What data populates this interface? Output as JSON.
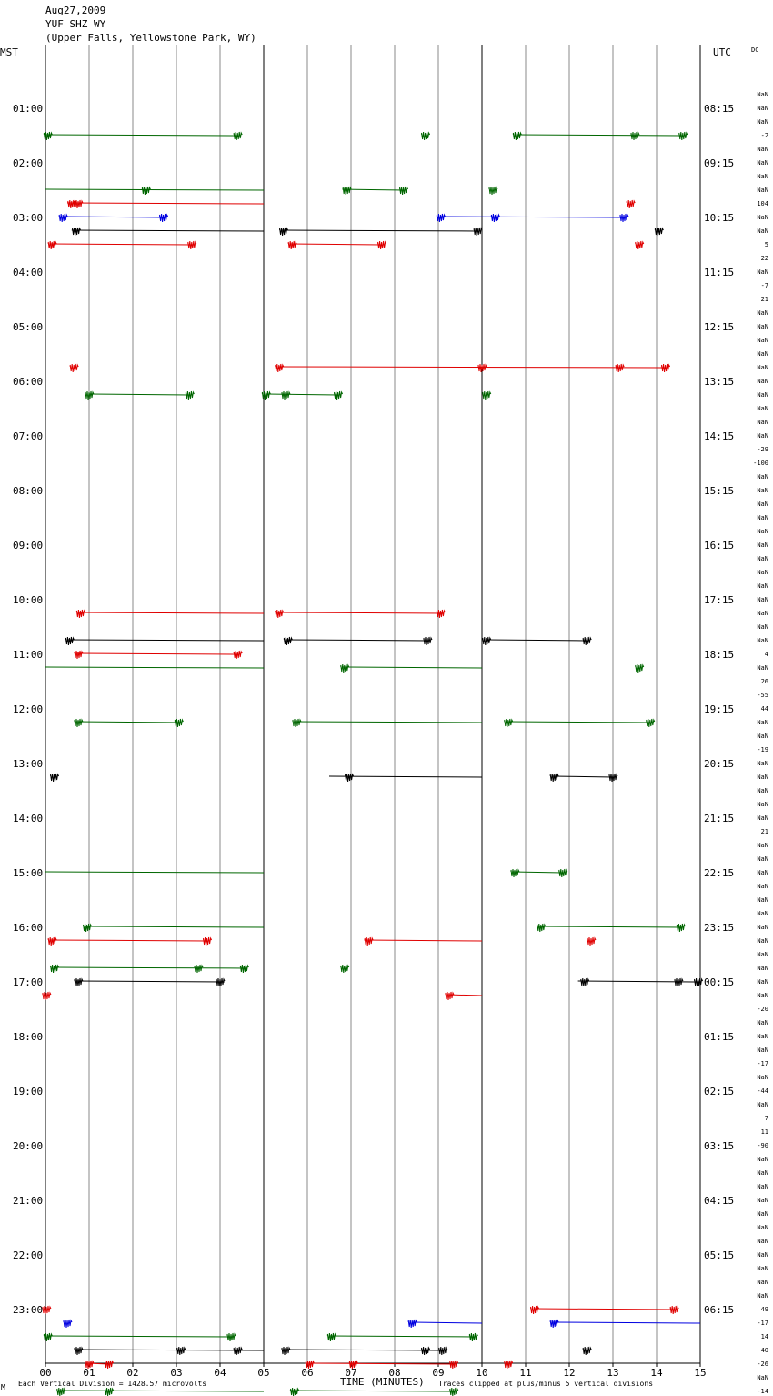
{
  "header": {
    "date": "Aug27,2009",
    "station": "YUF SHZ WY",
    "location": "(Upper Falls, Yellowstone Park, WY)"
  },
  "chart_data": {
    "type": "line",
    "title": "YUF SHZ WY",
    "left_axis_label": "MST",
    "right_axis_label": "UTC",
    "dc_label": "DC",
    "xlabel": "TIME (MINUTES)",
    "xlim": [
      0,
      15
    ],
    "x_ticks": [
      "00",
      "01",
      "02",
      "03",
      "04",
      "05",
      "06",
      "07",
      "08",
      "09",
      "10",
      "11",
      "12",
      "13",
      "14",
      "15"
    ],
    "row_count": 96,
    "left_hour_labels": [
      "01:00",
      "02:00",
      "03:00",
      "04:00",
      "05:00",
      "06:00",
      "07:00",
      "08:00",
      "09:00",
      "10:00",
      "11:00",
      "12:00",
      "13:00",
      "14:00",
      "15:00",
      "16:00",
      "17:00",
      "18:00",
      "19:00",
      "20:00",
      "21:00",
      "22:00",
      "23:00"
    ],
    "right_hour_labels": [
      "08:15",
      "09:15",
      "10:15",
      "11:15",
      "12:15",
      "13:15",
      "14:15",
      "15:15",
      "16:15",
      "17:15",
      "18:15",
      "19:15",
      "20:15",
      "21:15",
      "22:15",
      "23:15",
      "00:15",
      "01:15",
      "02:15",
      "03:15",
      "04:15",
      "05:15",
      "06:15"
    ],
    "dc_offsets": [
      "NaN",
      "NaN",
      "NaN",
      "-2",
      "NaN",
      "NaN",
      "NaN",
      "NaN",
      "104",
      "NaN",
      "NaN",
      "5",
      "22",
      "NaN",
      "-7",
      "21",
      "NaN",
      "NaN",
      "NaN",
      "NaN",
      "NaN",
      "NaN",
      "NaN",
      "NaN",
      "NaN",
      "NaN",
      "-29",
      "-100",
      "NaN",
      "NaN",
      "NaN",
      "NaN",
      "NaN",
      "NaN",
      "NaN",
      "NaN",
      "NaN",
      "NaN",
      "NaN",
      "NaN",
      "NaN",
      "4",
      "NaN",
      "26",
      "-55",
      "44",
      "NaN",
      "NaN",
      "-19",
      "NaN",
      "NaN",
      "NaN",
      "NaN",
      "NaN",
      "21",
      "NaN",
      "NaN",
      "NaN",
      "NaN",
      "NaN",
      "NaN",
      "NaN",
      "NaN",
      "NaN",
      "NaN",
      "NaN",
      "NaN",
      "-20",
      "NaN",
      "NaN",
      "NaN",
      "-17",
      "NaN",
      "-44",
      "NaN",
      "7",
      "11",
      "-90",
      "NaN",
      "NaN",
      "NaN",
      "NaN",
      "NaN",
      "NaN",
      "NaN",
      "NaN",
      "NaN",
      "NaN",
      "NaN",
      "49",
      "-17",
      "14",
      "40",
      "-26",
      "NaN",
      "-14"
    ],
    "colors": {
      "black": "#000000",
      "red": "#e00000",
      "blue": "#0000e0",
      "green": "#006600",
      "grid": "#888888"
    },
    "segments": [
      {
        "row": 3,
        "color": "green",
        "x": [
          0,
          4.4
        ],
        "bursts": [
          0.05,
          4.4
        ]
      },
      {
        "row": 3,
        "color": "green",
        "x": [
          8.7,
          8.7
        ],
        "bursts": [
          8.7
        ]
      },
      {
        "row": 3,
        "color": "green",
        "x": [
          10.8,
          14.6
        ],
        "bursts": [
          10.8,
          13.5,
          14.6
        ]
      },
      {
        "row": 7,
        "color": "green",
        "x": [
          0,
          5
        ],
        "bursts": [
          2.3
        ]
      },
      {
        "row": 7,
        "color": "green",
        "x": [
          6.8,
          8.2
        ],
        "bursts": [
          6.9,
          8.2
        ]
      },
      {
        "row": 7,
        "color": "green",
        "x": [
          10.25,
          10.25
        ],
        "bursts": [
          10.25
        ]
      },
      {
        "row": 8,
        "color": "red",
        "x": [
          0.5,
          5
        ],
        "bursts": [
          0.6,
          0.75
        ]
      },
      {
        "row": 8,
        "color": "red",
        "x": [
          13.4,
          13.4
        ],
        "bursts": [
          13.4
        ]
      },
      {
        "row": 9,
        "color": "blue",
        "x": [
          0.4,
          2.75
        ],
        "bursts": [
          0.4,
          2.7
        ]
      },
      {
        "row": 9,
        "color": "blue",
        "x": [
          9.05,
          13.25
        ],
        "bursts": [
          9.05,
          10.3,
          13.25
        ]
      },
      {
        "row": 10,
        "color": "black",
        "x": [
          0.6,
          5
        ],
        "bursts": [
          0.7
        ]
      },
      {
        "row": 10,
        "color": "black",
        "x": [
          5.4,
          9.9
        ],
        "bursts": [
          5.45,
          9.9
        ]
      },
      {
        "row": 10,
        "color": "black",
        "x": [
          14.05,
          14.05
        ],
        "bursts": [
          14.05
        ]
      },
      {
        "row": 11,
        "color": "red",
        "x": [
          0.1,
          3.4
        ],
        "bursts": [
          0.15,
          3.35
        ]
      },
      {
        "row": 11,
        "color": "red",
        "x": [
          5.6,
          7.7
        ],
        "bursts": [
          5.65,
          7.7
        ]
      },
      {
        "row": 11,
        "color": "red",
        "x": [
          13.6,
          13.6
        ],
        "bursts": [
          13.6
        ]
      },
      {
        "row": 20,
        "color": "red",
        "x": [
          0.6,
          0.6
        ],
        "bursts": [
          0.65
        ]
      },
      {
        "row": 20,
        "color": "red",
        "x": [
          5.35,
          14.2
        ],
        "bursts": [
          5.35,
          10.0,
          13.15,
          14.2
        ]
      },
      {
        "row": 22,
        "color": "green",
        "x": [
          1.0,
          3.3
        ],
        "bursts": [
          1.0,
          3.3
        ]
      },
      {
        "row": 22,
        "color": "green",
        "x": [
          5.05,
          6.7
        ],
        "bursts": [
          5.05,
          5.5,
          6.7
        ]
      },
      {
        "row": 22,
        "color": "green",
        "x": [
          10.1,
          10.1
        ],
        "bursts": [
          10.1
        ]
      },
      {
        "row": 38,
        "color": "red",
        "x": [
          0.75,
          5
        ],
        "bursts": [
          0.8
        ]
      },
      {
        "row": 38,
        "color": "red",
        "x": [
          5.3,
          9.1
        ],
        "bursts": [
          5.35,
          9.05
        ]
      },
      {
        "row": 40,
        "color": "black",
        "x": [
          0.5,
          5
        ],
        "bursts": [
          0.55
        ]
      },
      {
        "row": 40,
        "color": "black",
        "x": [
          5.5,
          8.8
        ],
        "bursts": [
          5.55,
          8.75
        ]
      },
      {
        "row": 40,
        "color": "black",
        "x": [
          10.1,
          12.4
        ],
        "bursts": [
          10.1,
          12.4
        ]
      },
      {
        "row": 41,
        "color": "red",
        "x": [
          0.7,
          4.4
        ],
        "bursts": [
          0.75,
          4.4
        ]
      },
      {
        "row": 42,
        "color": "green",
        "x": [
          0,
          5
        ],
        "bursts": []
      },
      {
        "row": 42,
        "color": "green",
        "x": [
          6.8,
          10
        ],
        "bursts": [
          6.85
        ]
      },
      {
        "row": 42,
        "color": "green",
        "x": [
          13.6,
          13.6
        ],
        "bursts": [
          13.6
        ]
      },
      {
        "row": 46,
        "color": "green",
        "x": [
          0.7,
          3.1
        ],
        "bursts": [
          0.75,
          3.05
        ]
      },
      {
        "row": 46,
        "color": "green",
        "x": [
          5.7,
          10
        ],
        "bursts": [
          5.75
        ]
      },
      {
        "row": 46,
        "color": "green",
        "x": [
          10.6,
          13.85
        ],
        "bursts": [
          10.6,
          13.85
        ]
      },
      {
        "row": 50,
        "color": "black",
        "x": [
          0.2,
          0.2
        ],
        "bursts": [
          0.2
        ]
      },
      {
        "row": 50,
        "color": "black",
        "x": [
          6.5,
          10
        ],
        "bursts": [
          6.95
        ]
      },
      {
        "row": 50,
        "color": "black",
        "x": [
          11.6,
          13.0
        ],
        "bursts": [
          11.65,
          13.0
        ]
      },
      {
        "row": 57,
        "color": "green",
        "x": [
          0,
          5
        ],
        "bursts": []
      },
      {
        "row": 57,
        "color": "green",
        "x": [
          10.7,
          11.85
        ],
        "bursts": [
          10.75,
          11.85
        ]
      },
      {
        "row": 61,
        "color": "green",
        "x": [
          0.9,
          5
        ],
        "bursts": [
          0.95
        ]
      },
      {
        "row": 61,
        "color": "green",
        "x": [
          11.3,
          14.55
        ],
        "bursts": [
          11.35,
          14.55
        ]
      },
      {
        "row": 62,
        "color": "red",
        "x": [
          0.1,
          3.7
        ],
        "bursts": [
          0.15,
          3.7
        ]
      },
      {
        "row": 62,
        "color": "red",
        "x": [
          7.3,
          10
        ],
        "bursts": [
          7.4
        ]
      },
      {
        "row": 62,
        "color": "red",
        "x": [
          12.5,
          12.5
        ],
        "bursts": [
          12.5
        ]
      },
      {
        "row": 64,
        "color": "green",
        "x": [
          0.2,
          4.6
        ],
        "bursts": [
          0.2,
          3.5,
          4.55
        ]
      },
      {
        "row": 64,
        "color": "green",
        "x": [
          6.85,
          6.85
        ],
        "bursts": [
          6.85
        ]
      },
      {
        "row": 65,
        "color": "black",
        "x": [
          0.7,
          4.1
        ],
        "bursts": [
          0.75,
          4.0
        ]
      },
      {
        "row": 65,
        "color": "black",
        "x": [
          12.2,
          15
        ],
        "bursts": [
          12.35,
          14.5,
          14.95
        ]
      },
      {
        "row": 66,
        "color": "red",
        "x": [
          0,
          0
        ],
        "bursts": [
          0.02
        ]
      },
      {
        "row": 66,
        "color": "red",
        "x": [
          9.2,
          10
        ],
        "bursts": [
          9.25
        ]
      },
      {
        "row": 89,
        "color": "red",
        "x": [
          0,
          0
        ],
        "bursts": [
          0.02
        ]
      },
      {
        "row": 89,
        "color": "red",
        "x": [
          11.2,
          14.4
        ],
        "bursts": [
          11.2,
          14.4
        ]
      },
      {
        "row": 90,
        "color": "blue",
        "x": [
          0.5,
          0.5
        ],
        "bursts": [
          0.5
        ]
      },
      {
        "row": 90,
        "color": "blue",
        "x": [
          8.4,
          10
        ],
        "bursts": [
          8.4
        ]
      },
      {
        "row": 90,
        "color": "blue",
        "x": [
          11.6,
          15
        ],
        "bursts": [
          11.65
        ]
      },
      {
        "row": 91,
        "color": "green",
        "x": [
          0.05,
          4.3
        ],
        "bursts": [
          0.05,
          4.25
        ]
      },
      {
        "row": 91,
        "color": "green",
        "x": [
          6.5,
          9.8
        ],
        "bursts": [
          6.55,
          9.8
        ]
      },
      {
        "row": 92,
        "color": "black",
        "x": [
          0.7,
          5
        ],
        "bursts": [
          0.75,
          3.1,
          4.4
        ]
      },
      {
        "row": 92,
        "color": "black",
        "x": [
          5.45,
          9.1
        ],
        "bursts": [
          5.5,
          8.7,
          9.1
        ]
      },
      {
        "row": 92,
        "color": "black",
        "x": [
          12.4,
          12.4
        ],
        "bursts": [
          12.4
        ]
      },
      {
        "row": 93,
        "color": "red",
        "x": [
          0.95,
          1.45
        ],
        "bursts": [
          1.0,
          1.45
        ]
      },
      {
        "row": 93,
        "color": "red",
        "x": [
          5.95,
          9.35
        ],
        "bursts": [
          6.05,
          7.05,
          9.35
        ]
      },
      {
        "row": 93,
        "color": "red",
        "x": [
          10.6,
          10.6
        ],
        "bursts": [
          10.6
        ]
      },
      {
        "row": 95,
        "color": "green",
        "x": [
          0.3,
          5
        ],
        "bursts": [
          0.35,
          1.45
        ]
      },
      {
        "row": 95,
        "color": "green",
        "x": [
          5.6,
          9.35
        ],
        "bursts": [
          5.7,
          9.35
        ]
      }
    ]
  },
  "footer": {
    "scale_note": "Each Vertical Division = 1428.57 microvolts",
    "clip_note": "Traces clipped at plus/minus 5 vertical divisions",
    "corner_mark": "M"
  }
}
